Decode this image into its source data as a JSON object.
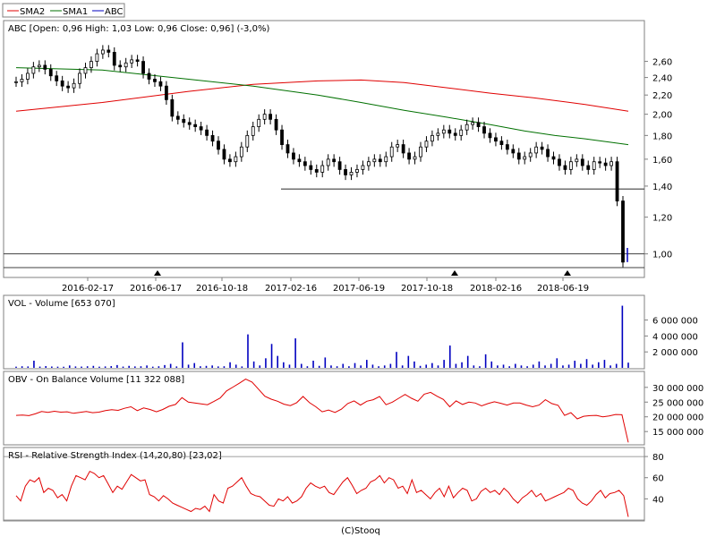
{
  "legend": {
    "items": [
      {
        "label": "SMA2",
        "color": "#e00000"
      },
      {
        "label": "SMA1",
        "color": "#007000"
      },
      {
        "label": "ABC",
        "color": "#0000c0"
      }
    ]
  },
  "footer": "(C)Stooq",
  "colors": {
    "volume": "#0000c0",
    "obv": "#e00000",
    "rsi": "#e00000",
    "sma1": "#007000",
    "sma2": "#e00000",
    "candle": "#000000",
    "frame": "#808080"
  },
  "chart_data": [
    {
      "type": "candlestick",
      "title": "ABC [Open: 0,96  High: 1,03  Low: 0,96  Close: 0,96] (-3,0%)",
      "yscale": "log",
      "ylim": [
        0.93,
        2.9
      ],
      "y_ticks": [
        "2,60",
        "2,40",
        "2,20",
        "2,00",
        "1,80",
        "1,60",
        "1,40",
        "1,20",
        "1,00"
      ],
      "x_ticks": [
        "2016-02-17",
        "2016-06-17",
        "2016-10-18",
        "2017-02-16",
        "2017-06-19",
        "2017-10-18",
        "2018-02-16",
        "2018-06-19"
      ],
      "close": [
        2.35,
        2.38,
        2.45,
        2.53,
        2.55,
        2.5,
        2.42,
        2.36,
        2.3,
        2.28,
        2.33,
        2.45,
        2.52,
        2.6,
        2.7,
        2.75,
        2.72,
        2.55,
        2.53,
        2.58,
        2.62,
        2.6,
        2.45,
        2.38,
        2.35,
        2.3,
        2.15,
        1.98,
        1.95,
        1.92,
        1.9,
        1.88,
        1.85,
        1.8,
        1.75,
        1.68,
        1.6,
        1.58,
        1.62,
        1.7,
        1.8,
        1.88,
        1.95,
        2.0,
        1.95,
        1.85,
        1.72,
        1.65,
        1.6,
        1.58,
        1.55,
        1.52,
        1.5,
        1.55,
        1.6,
        1.58,
        1.52,
        1.48,
        1.5,
        1.52,
        1.55,
        1.58,
        1.6,
        1.58,
        1.62,
        1.7,
        1.72,
        1.65,
        1.6,
        1.62,
        1.7,
        1.75,
        1.8,
        1.82,
        1.85,
        1.82,
        1.8,
        1.85,
        1.9,
        1.92,
        1.88,
        1.82,
        1.78,
        1.75,
        1.72,
        1.68,
        1.65,
        1.6,
        1.62,
        1.65,
        1.7,
        1.68,
        1.62,
        1.6,
        1.55,
        1.52,
        1.58,
        1.6,
        1.55,
        1.52,
        1.58,
        1.57,
        1.55,
        1.58,
        1.3,
        0.96
      ],
      "sma1": {
        "name": "SMA1",
        "points": [
          [
            0,
            2.52
          ],
          [
            20,
            2.49
          ],
          [
            40,
            2.38
          ],
          [
            55,
            2.3
          ],
          [
            70,
            2.2
          ],
          [
            80,
            2.12
          ],
          [
            90,
            2.04
          ],
          [
            100,
            1.97
          ],
          [
            110,
            1.9
          ],
          [
            118,
            1.84
          ],
          [
            125,
            1.8
          ],
          [
            132,
            1.77
          ],
          [
            142,
            1.72
          ]
        ]
      },
      "sma2": {
        "name": "SMA2",
        "points": [
          [
            0,
            2.03
          ],
          [
            20,
            2.12
          ],
          [
            40,
            2.24
          ],
          [
            55,
            2.32
          ],
          [
            70,
            2.36
          ],
          [
            80,
            2.37
          ],
          [
            90,
            2.34
          ],
          [
            100,
            2.28
          ],
          [
            110,
            2.22
          ],
          [
            120,
            2.17
          ],
          [
            132,
            2.1
          ],
          [
            142,
            2.03
          ]
        ]
      },
      "support_line": 1.38,
      "lower_line": 1.0
    },
    {
      "type": "bar",
      "title": "VOL - Volume [653 070]",
      "y_ticks": [
        "6 000 000",
        "4 000 000",
        "2 000 000"
      ],
      "ylim": [
        0,
        8200000
      ],
      "values": [
        150000,
        200000,
        180000,
        900000,
        160000,
        220000,
        170000,
        150000,
        140000,
        300000,
        180000,
        160000,
        200000,
        250000,
        150000,
        180000,
        220000,
        350000,
        160000,
        250000,
        180000,
        200000,
        300000,
        150000,
        200000,
        350000,
        500000,
        180000,
        3200000,
        400000,
        600000,
        200000,
        250000,
        300000,
        180000,
        200000,
        700000,
        400000,
        180000,
        4200000,
        800000,
        300000,
        1200000,
        3000000,
        1500000,
        700000,
        400000,
        3700000,
        500000,
        200000,
        900000,
        250000,
        1300000,
        300000,
        200000,
        500000,
        200000,
        600000,
        300000,
        1000000,
        400000,
        200000,
        300000,
        500000,
        2000000,
        300000,
        1500000,
        800000,
        250000,
        400000,
        600000,
        300000,
        1000000,
        2800000,
        500000,
        700000,
        1500000,
        300000,
        200000,
        1700000,
        800000,
        300000,
        400000,
        200000,
        500000,
        300000,
        200000,
        400000,
        800000,
        300000,
        500000,
        1200000,
        300000,
        400000,
        900000,
        500000,
        1100000,
        400000,
        700000,
        1000000,
        300000,
        500000,
        7800000,
        653070
      ]
    },
    {
      "type": "line",
      "title": "OBV - On Balance Volume [11 322 088]",
      "y_ticks": [
        "30 000 000",
        "25 000 000",
        "20 000 000",
        "15 000 000"
      ],
      "ylim": [
        10800000,
        34500000
      ],
      "values": [
        20500000,
        20600000,
        20400000,
        21000000,
        21800000,
        21500000,
        21900000,
        21600000,
        21700000,
        21200000,
        21500000,
        21800000,
        21400000,
        21600000,
        22100000,
        22400000,
        22200000,
        22900000,
        23400000,
        22100000,
        23000000,
        22500000,
        21700000,
        22500000,
        23600000,
        24200000,
        26500000,
        25000000,
        24700000,
        24400000,
        24100000,
        25200000,
        26400000,
        28800000,
        30100000,
        31400000,
        32800000,
        31800000,
        29400000,
        27000000,
        26000000,
        25300000,
        24300000,
        23800000,
        24800000,
        26900000,
        24800000,
        23400000,
        21700000,
        22300000,
        21500000,
        22600000,
        24500000,
        25400000,
        24000000,
        25300000,
        25800000,
        26900000,
        24100000,
        25000000,
        26300000,
        27600000,
        26300000,
        25300000,
        27700000,
        28300000,
        27000000,
        25900000,
        23400000,
        25400000,
        24200000,
        25000000,
        24700000,
        23700000,
        24500000,
        25100000,
        24600000,
        24000000,
        24700000,
        24700000,
        24000000,
        23400000,
        24000000,
        25800000,
        24500000,
        23900000,
        20500000,
        21400000,
        19300000,
        20200000,
        20400000,
        20500000,
        20000000,
        20300000,
        20800000,
        20700000,
        11322088
      ]
    },
    {
      "type": "line",
      "title": "RSI - Relative Strength Index (14,20,80) [23,02]",
      "y_ticks": [
        "80",
        "60",
        "40"
      ],
      "ylim": [
        20,
        86
      ],
      "reference_lines": [
        20,
        80
      ],
      "values": [
        43,
        38,
        52,
        58,
        56,
        60,
        46,
        50,
        48,
        41,
        44,
        38,
        52,
        62,
        60,
        58,
        66,
        64,
        60,
        62,
        54,
        46,
        52,
        49,
        56,
        63,
        60,
        57,
        58,
        44,
        42,
        38,
        43,
        40,
        36,
        34,
        32,
        30,
        28,
        31,
        30,
        33,
        28,
        44,
        38,
        36,
        50,
        52,
        56,
        60,
        52,
        45,
        43,
        42,
        38,
        34,
        33,
        40,
        38,
        42,
        36,
        38,
        42,
        50,
        55,
        52,
        50,
        52,
        46,
        44,
        50,
        56,
        60,
        53,
        45,
        48,
        50,
        56,
        58,
        62,
        55,
        60,
        58,
        50,
        52,
        45,
        58,
        46,
        48,
        44,
        40,
        46,
        50,
        42,
        52,
        41,
        46,
        50,
        48,
        38,
        40,
        47,
        50,
        46,
        48,
        44,
        50,
        46,
        40,
        36,
        41,
        44,
        48,
        42,
        45,
        38,
        40,
        42,
        44,
        46,
        50,
        48,
        40,
        36,
        34,
        38,
        44,
        48,
        41,
        45,
        46,
        48,
        43,
        23
      ]
    }
  ]
}
